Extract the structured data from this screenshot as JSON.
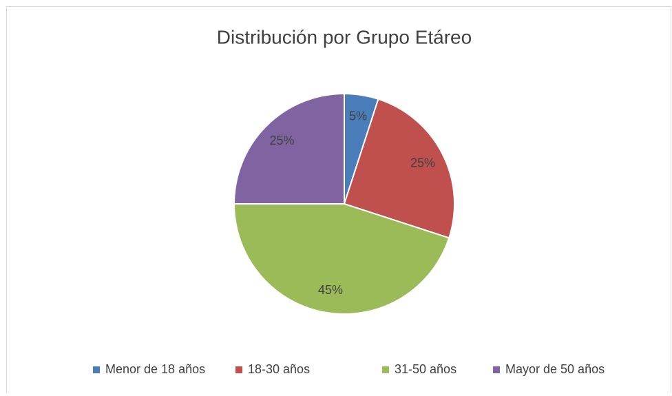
{
  "chart_data": {
    "type": "pie",
    "title": "Distribución por Grupo Etáreo",
    "categories": [
      "Menor de 18 años",
      "18-30 años",
      "31-50 años",
      "Mayor de 50 años"
    ],
    "values": [
      5,
      25,
      45,
      25
    ],
    "value_labels": [
      "5%",
      "25%",
      "45%",
      "25%"
    ],
    "colors": [
      "#4a7ebb",
      "#c0504d",
      "#9bbb59",
      "#8064a2"
    ],
    "legend": "bottom"
  }
}
